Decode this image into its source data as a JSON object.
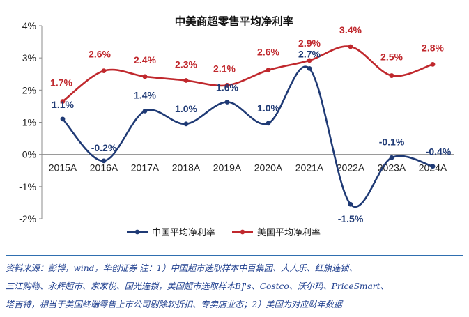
{
  "chart_data": {
    "type": "line",
    "title": "中美商超零售平均净利率",
    "categories": [
      "2015A",
      "2016A",
      "2017A",
      "2018A",
      "2019A",
      "2020A",
      "2021A",
      "2022A",
      "2023A",
      "2024A"
    ],
    "y_ticks": [
      "4%",
      "3%",
      "2%",
      "1%",
      "0%",
      "-1%",
      "-2%"
    ],
    "ylim": [
      -2,
      4
    ],
    "grid": false,
    "legend_position": "bottom",
    "series": [
      {
        "name": "中国平均净利率",
        "color": "#1f3a75",
        "values": [
          1.1,
          -0.2,
          1.35,
          0.95,
          1.63,
          0.97,
          2.67,
          -1.55,
          -0.1,
          -0.37
        ],
        "labels": [
          "1.1%",
          "-0.2%",
          "1.4%",
          "1.0%",
          "1.6%",
          "1.0%",
          "2.7%",
          "-1.5%",
          "-0.1%",
          "-0.4%"
        ]
      },
      {
        "name": "美国平均净利率",
        "color": "#c0282d",
        "values": [
          1.65,
          2.6,
          2.42,
          2.3,
          2.15,
          2.62,
          2.92,
          3.35,
          2.45,
          2.8
        ],
        "labels": [
          "1.7%",
          "2.6%",
          "2.4%",
          "2.3%",
          "2.1%",
          "2.6%",
          "2.9%",
          "3.4%",
          "2.5%",
          "2.8%"
        ]
      }
    ]
  },
  "source_note": {
    "line1": "资料来源：彭博，wind，华创证券  注：1）中国超市选取样本中百集团、人人乐、红旗连锁、",
    "line2": "三江购物、永辉超市、家家悦、国光连锁，美国超市选取样本BJ's、Costco、沃尔玛、PriceSmart、",
    "line3": "塔吉特，相当于美国终端零售上市公司剔除软折扣、专卖店业态；2）美国为对应财年数据"
  }
}
